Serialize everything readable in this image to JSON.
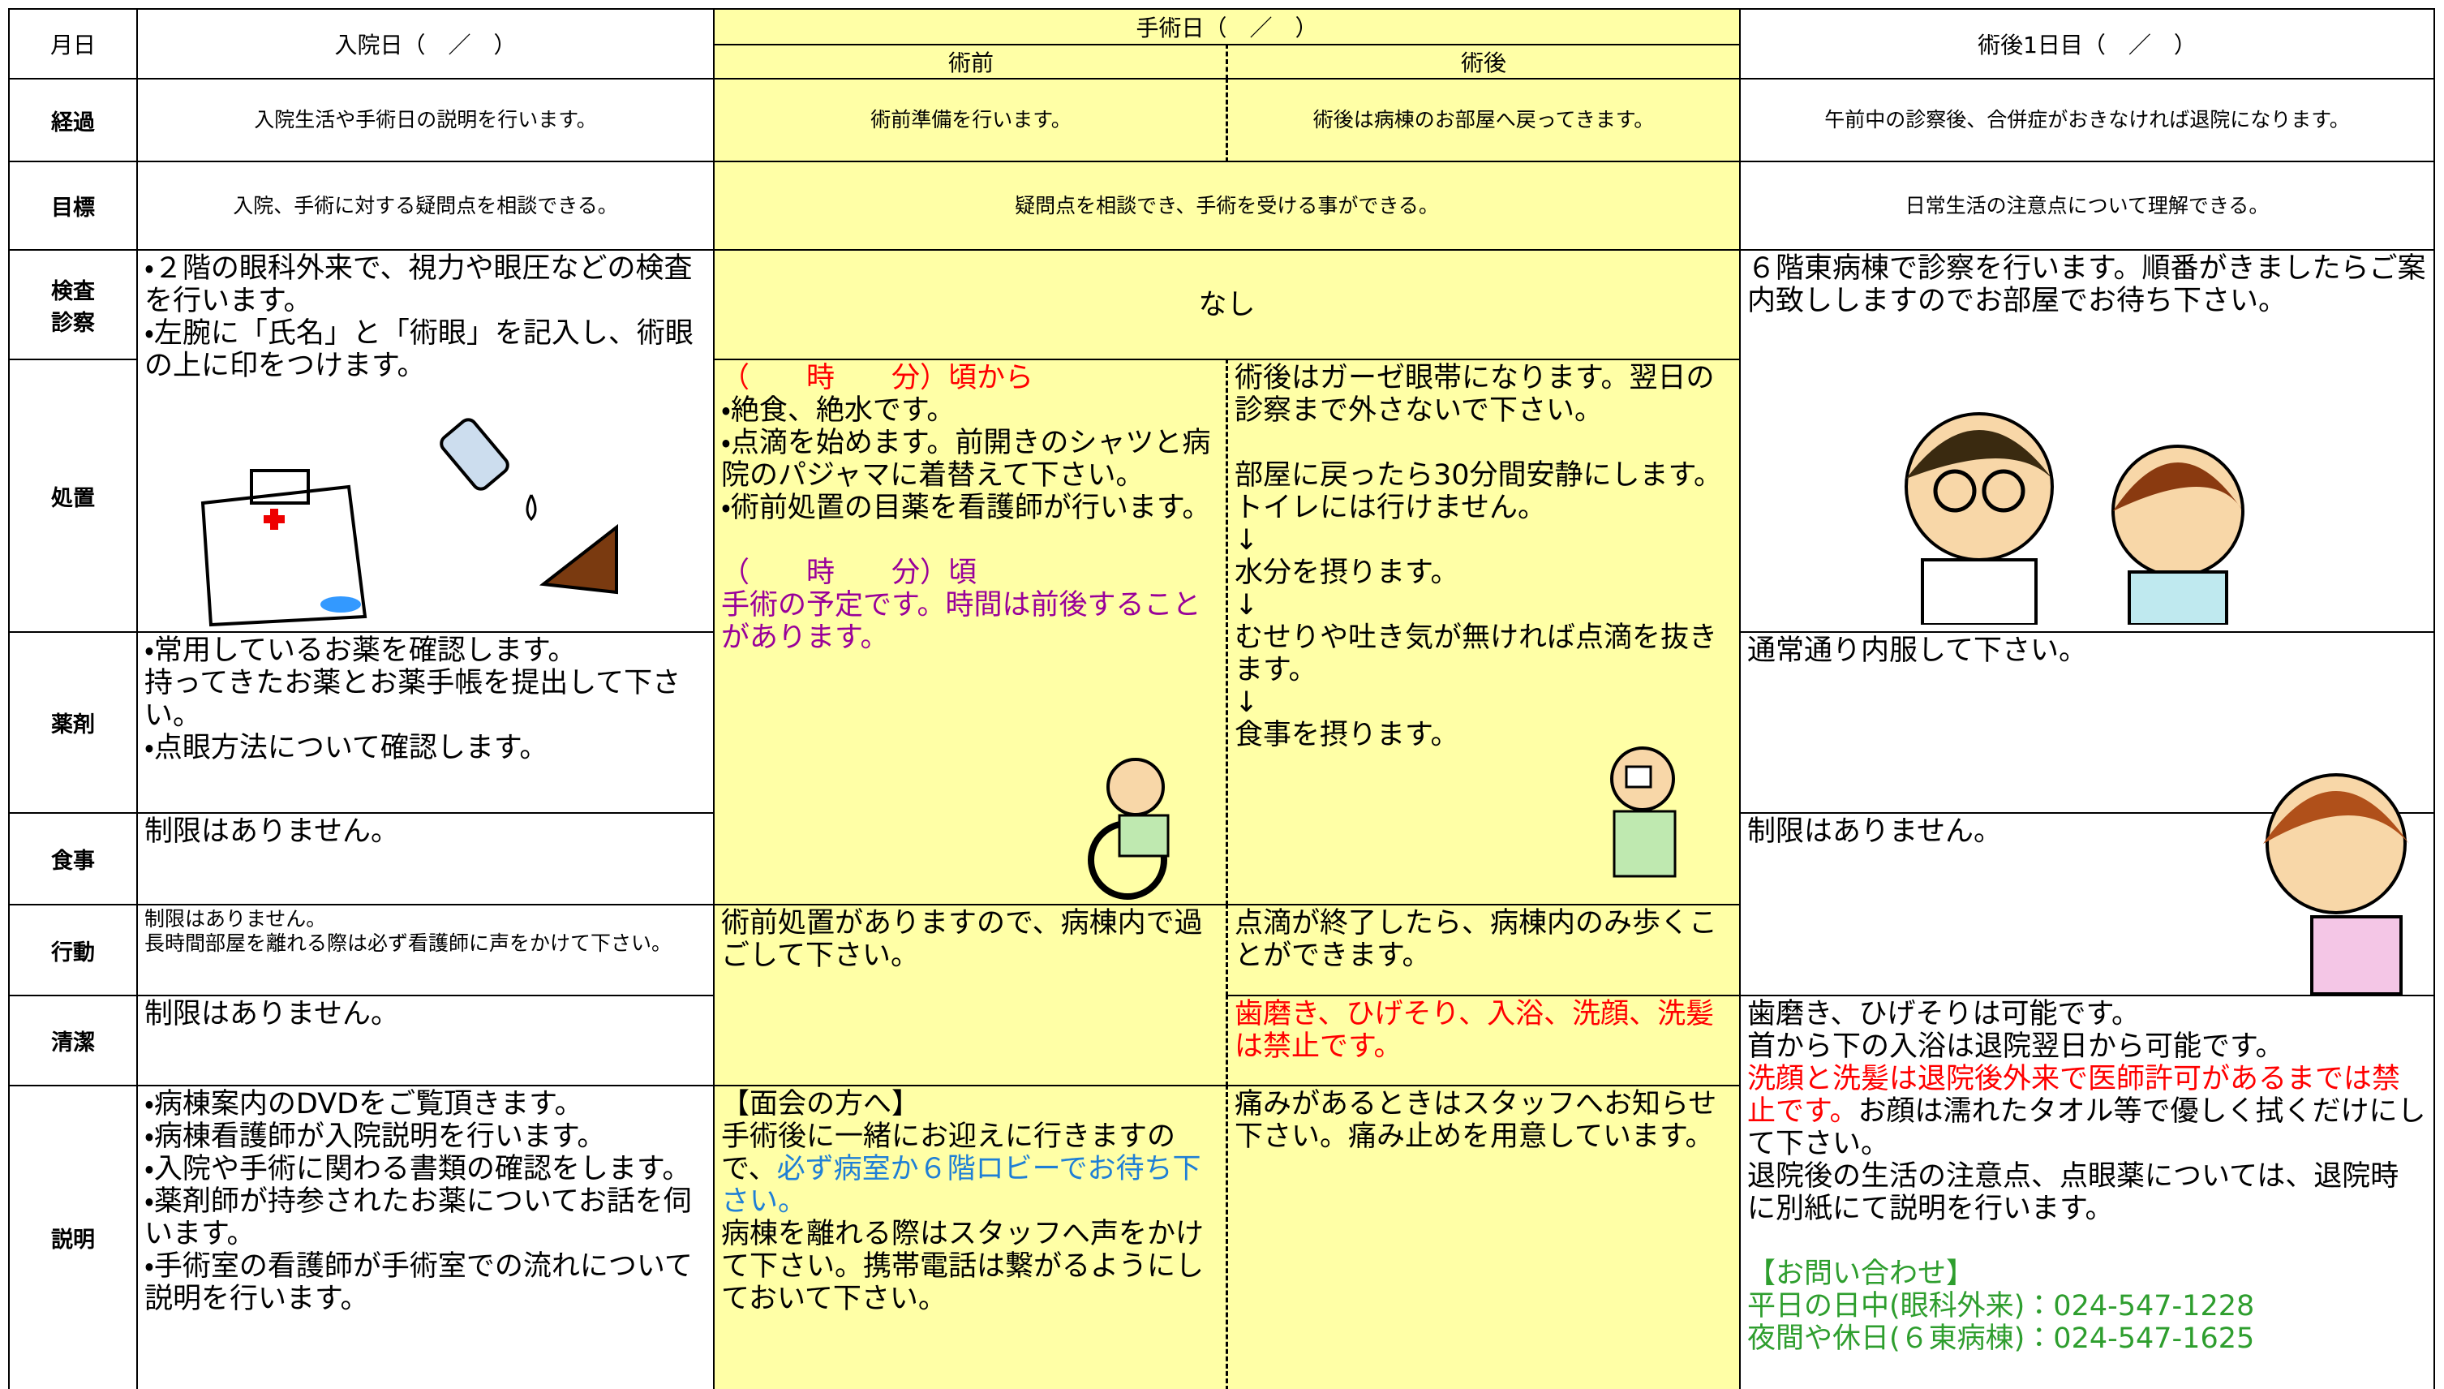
{
  "header": {
    "day_label": "月日",
    "admission": "入院日（　／　）",
    "surgery": "手術日（　／　）",
    "pre_op": "術前",
    "post_op": "術後",
    "post_day1": "術後1日目（　／　）"
  },
  "rows": {
    "progress": {
      "label": "経過",
      "admission": "入院生活や手術日の説明を行います。",
      "pre_op": "術前準備を行います。",
      "post_op": "術後は病棟のお部屋へ戻ってきます。",
      "post_day1": "午前中の診察後、合併症がおきなければ退院になります。"
    },
    "goal": {
      "label": "目標",
      "admission": "入院、手術に対する疑問点を相談できる。",
      "surgery": "疑問点を相談でき、手術を受ける事ができる。",
      "post_day1": "日常生活の注意点について理解できる。"
    },
    "exam": {
      "label": "検査診察",
      "admission": [
        "・２階の眼科外来で、視力や眼圧などの検査を行います。",
        "・左腕に「氏名」と「術眼」を記入し、術眼の上に印をつけます。"
      ],
      "surgery": "なし",
      "post_day1": [
        "６階東病棟で診察を行います。順番がきましたらご案内致ししますのでお部屋でお待ち下さい。"
      ]
    },
    "treatment": {
      "label": "処置",
      "pre_op": [
        {
          "text": "（　　時　　分）頃から",
          "color": "#ff0000"
        },
        "・絶食、絶水です。",
        "・点滴を始めます。前開きのシャツと病院のパジャマに着替えて下さい。",
        "・術前処置の目薬を看護師が行います。",
        {
          "text": "（　　時　　分）頃",
          "color": "#990099"
        },
        {
          "text": "手術の予定です。時間は前後することがあります。",
          "color": "#990099"
        }
      ],
      "post_op": [
        "術後はガーゼ眼帯になります。翌日の診察まで外さないで下さい。",
        "部屋に戻ったら30分間安静にします。トイレには行けません。",
        "↓",
        "水分を摂ります。",
        "↓",
        "むせりや吐き気が無ければ点滴を抜きます。",
        "↓",
        "食事を摂ります。"
      ]
    },
    "medicine": {
      "label": "薬剤",
      "admission": [
        "・常用しているお薬を確認します。",
        "持ってきたお薬とお薬手帳を提出して下さい。",
        "・点眼方法について確認します。"
      ],
      "post_day1": [
        "通常通り内服して下さい。"
      ]
    },
    "meal": {
      "label": "食事",
      "admission": [
        "制限はありません。"
      ],
      "post_day1": [
        "制限はありません。"
      ]
    },
    "activity": {
      "label": "行動",
      "admission": [
        "制限はありません。",
        "長時間部屋を離れる際は必ず看護師に声をかけて下さい。"
      ],
      "pre_op": [
        "術前処置がありますので、病棟内で過ごして下さい。"
      ],
      "post_op": [
        "点滴が終了したら、病棟内のみ歩くことができます。"
      ]
    },
    "hygiene": {
      "label": "清潔",
      "admission": [
        "制限はありません。"
      ],
      "post_op": [
        {
          "text": "歯磨き、ひげそり、入浴、洗顔、洗髪は禁止です。",
          "color": "#ff0000"
        }
      ],
      "post_day1": [
        "歯磨き、ひげそりは可能です。",
        "首から下の入浴は退院翌日から可能です。",
        [
          {
            "text": "洗顔と洗髪は退院後外来で医師許可があるまでは禁止です。",
            "color": "#ff0000"
          },
          "お顔は濡れたタオル等で優しく拭くだけにして下さい。"
        ],
        "退院後の生活の注意点、点眼薬については、退院時に別紙にて説明を行います。",
        {
          "text": "【お問い合わせ】",
          "color": "#2e9e2e"
        },
        {
          "text": "平日の日中(眼科外来)：024-547-1228",
          "color": "#2e9e2e"
        },
        {
          "text": "夜間や休日(６東病棟)：024-547-1625",
          "color": "#2e9e2e"
        }
      ]
    },
    "explanation": {
      "label": "説明",
      "admission": [
        "・病棟案内のDVDをご覧頂きます。",
        "・病棟看護師が入院説明を行います。",
        "・入院や手術に関わる書類の確認をします。",
        "・薬剤師が持参されたお薬についてお話を伺います。",
        "・手術室の看護師が手術室での流れについて説明を行います。"
      ],
      "pre_op": [
        "【面会の方へ】",
        [
          "手術後に一緒にお迎えに行きますので、",
          {
            "text": "必ず病室か６階ロビーでお待ち下さい。",
            "color": "#1f7fd6"
          }
        ],
        "病棟を離れる際はスタッフへ声をかけて下さい。携帯電話は繋がるようにしておいて下さい。"
      ],
      "post_op": [
        "痛みがあるときはスタッフへお知らせ下さい。痛み止めを用意しています。"
      ]
    }
  }
}
